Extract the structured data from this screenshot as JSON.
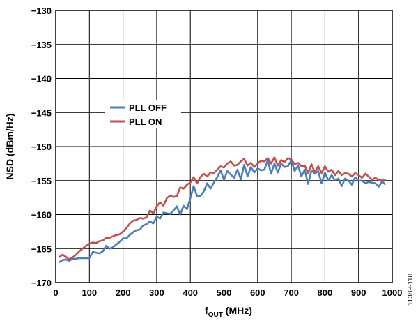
{
  "figure_id": "11389-118",
  "chart_data": {
    "type": "line",
    "title": "",
    "xlabel": {
      "main": "f",
      "sub": "OUT",
      "unit": " (MHz)"
    },
    "ylabel": "NSD (dBm/Hz)",
    "xlim": [
      0,
      1000
    ],
    "ylim": [
      -170,
      -130
    ],
    "xticks": [
      0,
      100,
      200,
      300,
      400,
      500,
      600,
      700,
      800,
      900,
      1000
    ],
    "yticks": [
      -130,
      -135,
      -140,
      -145,
      -150,
      -155,
      -160,
      -165,
      -170
    ],
    "xtick_labels": [
      "0",
      "100",
      "200",
      "300",
      "400",
      "500",
      "600",
      "700",
      "800",
      "900",
      "1000"
    ],
    "ytick_labels": [
      "−130",
      "−135",
      "−140",
      "−145",
      "−150",
      "−155",
      "−160",
      "−165",
      "−170"
    ],
    "grid": true,
    "legend_position": "middle-left",
    "series": [
      {
        "name": "PLL OFF",
        "color": "#4a7ebb",
        "x": [
          10,
          20,
          30,
          40,
          50,
          60,
          70,
          80,
          90,
          100,
          110,
          120,
          130,
          140,
          150,
          160,
          170,
          180,
          190,
          200,
          210,
          220,
          230,
          240,
          250,
          260,
          270,
          280,
          290,
          300,
          310,
          320,
          330,
          340,
          350,
          360,
          370,
          380,
          390,
          400,
          410,
          420,
          430,
          440,
          450,
          460,
          470,
          480,
          490,
          500,
          510,
          520,
          530,
          540,
          550,
          560,
          570,
          580,
          590,
          600,
          610,
          620,
          630,
          640,
          650,
          660,
          670,
          680,
          690,
          700,
          710,
          720,
          730,
          740,
          750,
          760,
          770,
          780,
          790,
          800,
          810,
          820,
          830,
          840,
          850,
          860,
          870,
          880,
          890,
          900,
          910,
          920,
          930,
          940,
          950,
          960,
          970,
          980
        ],
        "y": [
          -167.0,
          -166.7,
          -166.6,
          -166.8,
          -166.5,
          -166.5,
          -166.4,
          -166.4,
          -166.4,
          -166.4,
          -165.5,
          -165.6,
          -165.7,
          -165.4,
          -164.6,
          -165.0,
          -164.8,
          -164.4,
          -164.0,
          -163.5,
          -163.5,
          -163.0,
          -162.6,
          -162.3,
          -162.2,
          -161.6,
          -161.4,
          -161.0,
          -161.3,
          -160.3,
          -160.6,
          -159.7,
          -159.8,
          -159.9,
          -159.4,
          -158.8,
          -160.0,
          -158.7,
          -159.2,
          -157.6,
          -155.8,
          -157.3,
          -157.3,
          -156.6,
          -155.4,
          -156.2,
          -155.3,
          -154.5,
          -153.5,
          -154.9,
          -153.6,
          -154.1,
          -154.6,
          -153.4,
          -154.8,
          -152.7,
          -154.4,
          -153.0,
          -153.8,
          -153.2,
          -153.5,
          -153.4,
          -152.0,
          -154.0,
          -152.5,
          -153.8,
          -152.5,
          -153.0,
          -152.9,
          -152.0,
          -153.6,
          -152.8,
          -154.4,
          -153.4,
          -155.5,
          -153.5,
          -154.0,
          -153.6,
          -155.4,
          -153.8,
          -155.0,
          -154.2,
          -155.0,
          -154.7,
          -155.8,
          -154.7,
          -155.0,
          -155.6,
          -154.5,
          -155.0,
          -155.0,
          -155.4,
          -155.2,
          -155.3,
          -155.4,
          -155.9,
          -155.1,
          -155.6
        ]
      },
      {
        "name": "PLL ON",
        "color": "#c0504d",
        "x": [
          10,
          20,
          30,
          40,
          50,
          60,
          70,
          80,
          90,
          100,
          110,
          120,
          130,
          140,
          150,
          160,
          170,
          180,
          190,
          200,
          210,
          220,
          230,
          240,
          250,
          260,
          270,
          280,
          290,
          300,
          310,
          320,
          330,
          340,
          350,
          360,
          370,
          380,
          390,
          400,
          410,
          420,
          430,
          440,
          450,
          460,
          470,
          480,
          490,
          500,
          510,
          520,
          530,
          540,
          550,
          560,
          570,
          580,
          590,
          600,
          610,
          620,
          630,
          640,
          650,
          660,
          670,
          680,
          690,
          700,
          710,
          720,
          730,
          740,
          750,
          760,
          770,
          780,
          790,
          800,
          810,
          820,
          830,
          840,
          850,
          860,
          870,
          880,
          890,
          900,
          910,
          920,
          930,
          940,
          950,
          960,
          970,
          980
        ],
        "y": [
          -166.3,
          -165.9,
          -166.2,
          -166.6,
          -166.3,
          -165.9,
          -165.4,
          -165.0,
          -164.6,
          -164.3,
          -164.1,
          -164.2,
          -163.9,
          -163.8,
          -163.4,
          -163.4,
          -163.2,
          -163.0,
          -162.9,
          -162.5,
          -162.0,
          -161.3,
          -160.9,
          -160.8,
          -160.5,
          -160.6,
          -160.4,
          -159.4,
          -159.8,
          -158.8,
          -158.2,
          -158.7,
          -157.6,
          -157.2,
          -157.4,
          -157.3,
          -156.0,
          -156.2,
          -155.6,
          -155.3,
          -154.5,
          -155.4,
          -154.5,
          -154.0,
          -154.4,
          -153.8,
          -153.9,
          -153.4,
          -152.9,
          -153.1,
          -152.5,
          -152.2,
          -152.8,
          -152.7,
          -152.2,
          -151.8,
          -152.8,
          -152.4,
          -153.0,
          -152.5,
          -152.1,
          -152.2,
          -151.7,
          -152.5,
          -151.6,
          -152.8,
          -152.0,
          -152.3,
          -151.7,
          -151.9,
          -152.6,
          -152.4,
          -152.9,
          -152.8,
          -153.9,
          -152.6,
          -153.8,
          -152.9,
          -153.9,
          -152.9,
          -153.7,
          -153.4,
          -154.2,
          -153.6,
          -154.2,
          -153.9,
          -154.0,
          -154.4,
          -153.9,
          -154.2,
          -154.6,
          -154.0,
          -154.4,
          -154.9,
          -154.6,
          -154.9,
          -155.0,
          -154.8
        ]
      }
    ]
  }
}
